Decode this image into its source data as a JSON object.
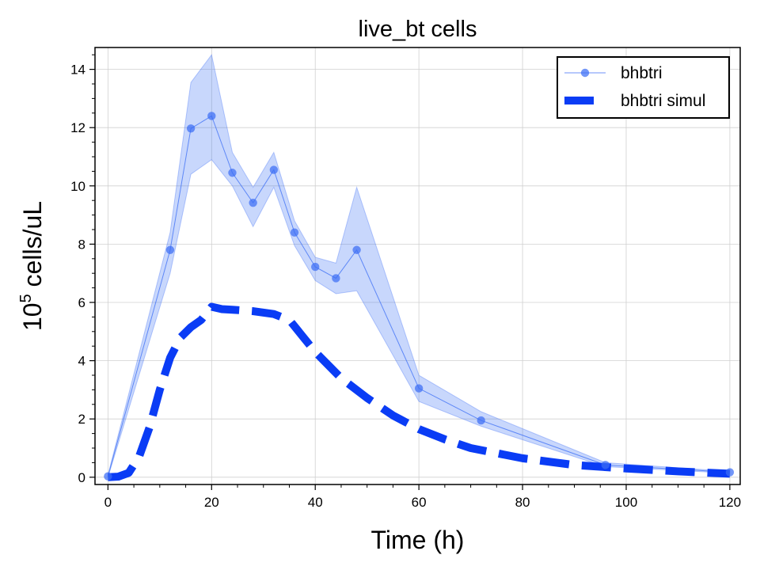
{
  "chart_data": {
    "type": "line",
    "title": "live_bt cells",
    "xlabel": "Time (h)",
    "ylabel_base": "10",
    "ylabel_exp": "5",
    "ylabel_rest": " cells/uL",
    "xlim": [
      -2.5,
      122
    ],
    "ylim": [
      -0.25,
      14.75
    ],
    "xticks": [
      0,
      20,
      40,
      60,
      80,
      100,
      120
    ],
    "yticks": [
      0,
      2,
      4,
      6,
      8,
      10,
      12,
      14
    ],
    "grid": true,
    "legend_position": "top-right",
    "series": [
      {
        "name": "bhbtri",
        "style": "line-marker",
        "color": "#3b6ef5",
        "x": [
          0,
          12,
          16,
          20,
          24,
          28,
          32,
          36,
          40,
          44,
          48,
          60,
          72,
          96,
          120
        ],
        "y": [
          0.03,
          7.8,
          11.97,
          12.4,
          10.45,
          9.42,
          10.55,
          8.4,
          7.22,
          6.83,
          7.8,
          3.05,
          1.95,
          0.42,
          0.17
        ],
        "y_low": [
          0.0,
          7.0,
          10.4,
          10.9,
          10.0,
          8.6,
          9.95,
          7.95,
          6.75,
          6.3,
          6.4,
          2.6,
          1.75,
          0.36,
          0.14
        ],
        "y_high": [
          0.08,
          8.4,
          13.55,
          14.5,
          11.15,
          9.95,
          11.15,
          8.8,
          7.55,
          7.35,
          9.95,
          3.5,
          2.25,
          0.5,
          0.2
        ]
      },
      {
        "name": "bhbtri simul",
        "style": "dashed",
        "color": "#0a3cf5",
        "x": [
          0,
          2,
          4,
          6,
          8,
          10,
          12,
          14,
          16,
          18,
          20,
          22,
          24,
          28,
          32,
          35,
          40,
          45,
          50,
          55,
          60,
          65,
          70,
          80,
          90,
          100,
          110,
          120
        ],
        "y": [
          0.0,
          0.02,
          0.15,
          0.7,
          1.7,
          3.0,
          4.1,
          4.8,
          5.15,
          5.4,
          5.85,
          5.77,
          5.75,
          5.7,
          5.6,
          5.4,
          4.3,
          3.4,
          2.72,
          2.12,
          1.65,
          1.3,
          1.0,
          0.65,
          0.42,
          0.3,
          0.2,
          0.12
        ]
      }
    ]
  }
}
